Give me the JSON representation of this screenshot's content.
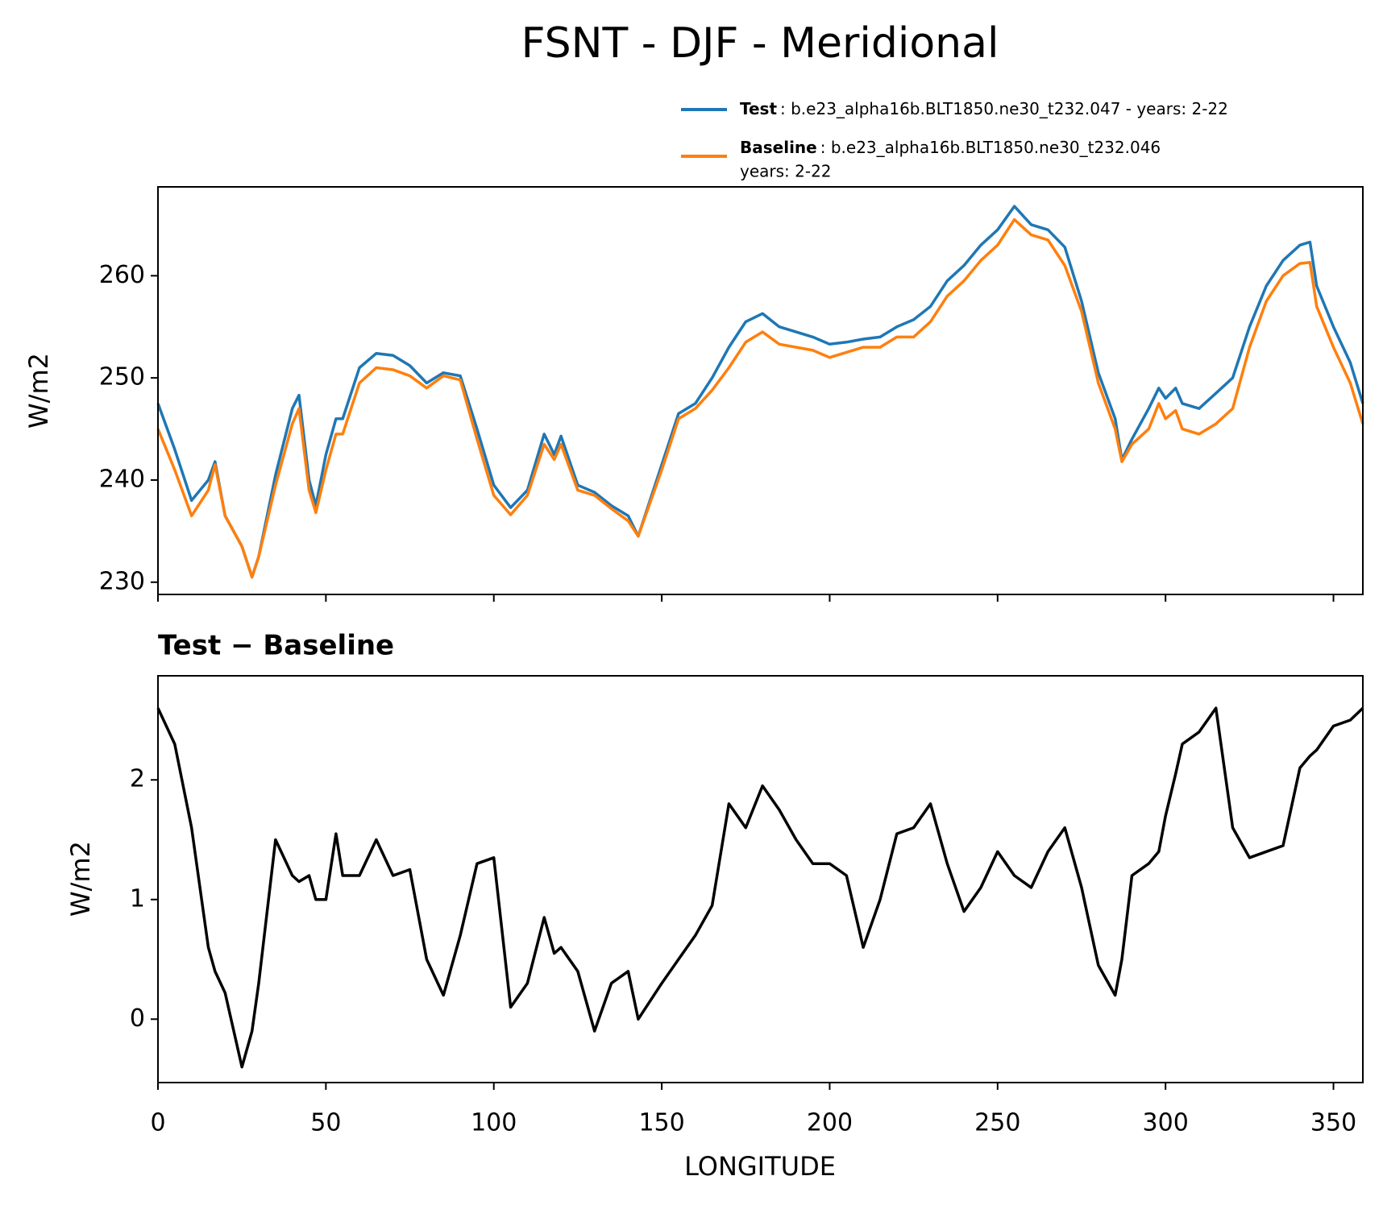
{
  "chart_data": [
    {
      "type": "line",
      "title": "FSNT - DJF - Meridional",
      "ylabel": "W/m2",
      "x": [
        0,
        5,
        10,
        15,
        17,
        20,
        25,
        28,
        30,
        35,
        40,
        42,
        45,
        47,
        50,
        53,
        55,
        60,
        65,
        70,
        75,
        80,
        85,
        90,
        95,
        100,
        105,
        110,
        115,
        118,
        120,
        125,
        130,
        135,
        140,
        143,
        150,
        155,
        160,
        165,
        170,
        175,
        180,
        185,
        190,
        195,
        200,
        205,
        210,
        215,
        220,
        225,
        230,
        235,
        240,
        245,
        250,
        255,
        260,
        265,
        270,
        275,
        280,
        285,
        287,
        290,
        295,
        298,
        300,
        303,
        305,
        310,
        315,
        320,
        325,
        330,
        335,
        340,
        343,
        345,
        350,
        355,
        358.75
      ],
      "series": [
        {
          "name": "Test",
          "description": [
            ": b.e23_alpha16b.BLT1850.ne30_t232.047 - years: 2-22"
          ],
          "color": "#1f77b4",
          "values": [
            247.5,
            243,
            238,
            240,
            241.8,
            236.5,
            233.5,
            230.5,
            232.5,
            240.5,
            247,
            248.3,
            240,
            237.5,
            242.5,
            246,
            246,
            251,
            252.4,
            252.2,
            251.2,
            249.5,
            250.5,
            250.2,
            245,
            239.5,
            237.3,
            239,
            244.5,
            242.5,
            244.3,
            239.5,
            238.8,
            237.5,
            236.5,
            234.5,
            241.5,
            246.5,
            247.5,
            250,
            253,
            255.5,
            256.3,
            255,
            254.5,
            254,
            253.3,
            253.5,
            253.8,
            254,
            255,
            255.7,
            257,
            259.5,
            261,
            263,
            264.5,
            266.8,
            265,
            264.5,
            262.8,
            257.5,
            250.5,
            246,
            242,
            244,
            247,
            249,
            248,
            249,
            247.5,
            247,
            248.5,
            250,
            255,
            259,
            261.5,
            263,
            263.3,
            259,
            255,
            251.5,
            247.5
          ]
        },
        {
          "name": "Baseline",
          "description": [
            ": b.e23_alpha16b.BLT1850.ne30_t232.046",
            "years: 2-22"
          ],
          "color": "#ff7f0e",
          "values": [
            245,
            241,
            236.5,
            239,
            241.5,
            236.5,
            233.5,
            230.5,
            232.5,
            239.5,
            245.5,
            247,
            239,
            236.8,
            241,
            244.5,
            244.5,
            249.5,
            251,
            250.8,
            250.2,
            249,
            250.2,
            249.8,
            244,
            238.5,
            236.6,
            238.5,
            243.5,
            242,
            243.5,
            239,
            238.5,
            237.2,
            236,
            234.5,
            241,
            246,
            247,
            248.8,
            251,
            253.5,
            254.5,
            253.3,
            253,
            252.7,
            252,
            252.5,
            253,
            253,
            254,
            254,
            255.5,
            258,
            259.5,
            261.5,
            263,
            265.5,
            264,
            263.5,
            261,
            256.5,
            249.5,
            245,
            241.8,
            243.5,
            245,
            247.5,
            246,
            246.8,
            245,
            244.5,
            245.5,
            247,
            253,
            257.5,
            260,
            261.2,
            261.3,
            257,
            253,
            249.5,
            245.5
          ]
        }
      ],
      "xlim": [
        0,
        358.75
      ],
      "xticks": [
        0,
        50,
        100,
        150,
        200,
        250,
        300,
        350
      ],
      "ylim": [
        228.8,
        268.7
      ],
      "yticks": [
        230,
        240,
        250,
        260
      ]
    },
    {
      "type": "line",
      "title": "Test − Baseline",
      "xlabel": "LONGITUDE",
      "ylabel": "W/m2",
      "x": [
        0,
        5,
        10,
        15,
        17,
        20,
        25,
        28,
        30,
        35,
        40,
        42,
        45,
        47,
        50,
        53,
        55,
        60,
        65,
        70,
        75,
        80,
        85,
        90,
        95,
        100,
        105,
        110,
        115,
        118,
        120,
        125,
        130,
        135,
        140,
        143,
        150,
        155,
        160,
        165,
        170,
        175,
        180,
        185,
        190,
        195,
        200,
        205,
        210,
        215,
        220,
        225,
        230,
        235,
        240,
        245,
        250,
        255,
        260,
        265,
        270,
        275,
        280,
        285,
        287,
        290,
        295,
        298,
        300,
        303,
        305,
        310,
        315,
        320,
        325,
        330,
        335,
        340,
        343,
        345,
        350,
        355,
        358.75
      ],
      "series": [
        {
          "color": "#000000",
          "values": [
            2.6,
            2.3,
            1.6,
            0.6,
            0.4,
            0.22,
            -0.4,
            -0.1,
            0.3,
            1.5,
            1.2,
            1.15,
            1.2,
            1.0,
            1.0,
            1.55,
            1.2,
            1.2,
            1.5,
            1.2,
            1.25,
            0.5,
            0.2,
            0.7,
            1.3,
            1.35,
            0.1,
            0.3,
            0.85,
            0.55,
            0.6,
            0.4,
            -0.1,
            0.3,
            0.4,
            0.0,
            0.3,
            0.5,
            0.7,
            0.95,
            1.8,
            1.6,
            1.95,
            1.75,
            1.5,
            1.3,
            1.3,
            1.2,
            0.6,
            1.0,
            1.55,
            1.6,
            1.8,
            1.3,
            0.9,
            1.1,
            1.4,
            1.2,
            1.1,
            1.4,
            1.6,
            1.1,
            0.45,
            0.2,
            0.5,
            1.2,
            1.3,
            1.4,
            1.7,
            2.05,
            2.3,
            2.4,
            2.6,
            1.6,
            1.35,
            1.4,
            1.45,
            2.1,
            2.2,
            2.25,
            2.45,
            2.5,
            2.6
          ]
        }
      ],
      "xlim": [
        0,
        358.75
      ],
      "xticks": [
        0,
        50,
        100,
        150,
        200,
        250,
        300,
        350
      ],
      "ylim": [
        -0.53,
        2.87
      ],
      "yticks": [
        0,
        1,
        2
      ]
    }
  ]
}
